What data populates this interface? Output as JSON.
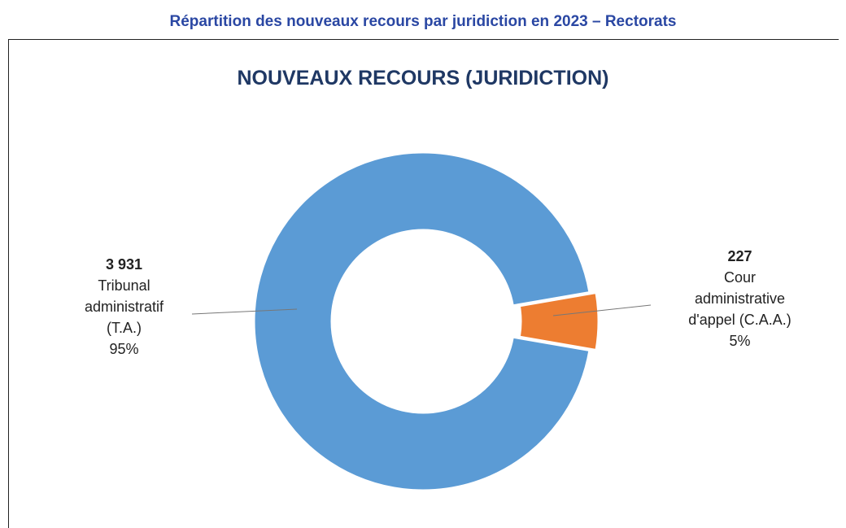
{
  "header": {
    "title": "Répartition des nouveaux recours par juridiction en 2023 – Rectorats"
  },
  "chart_data": {
    "type": "donut",
    "title": "NOUVEAUX RECOURS (JURIDICTION)",
    "categories": [
      "Tribunal administratif (T.A.)",
      "Cour administrative d'appel (C.A.A.)"
    ],
    "values": [
      3931,
      227
    ],
    "value_labels": [
      "3 931",
      "227"
    ],
    "percentages": [
      95,
      5
    ],
    "percentage_labels": [
      "95%",
      "5%"
    ],
    "colors": [
      "#5b9bd5",
      "#ed7d31"
    ]
  }
}
